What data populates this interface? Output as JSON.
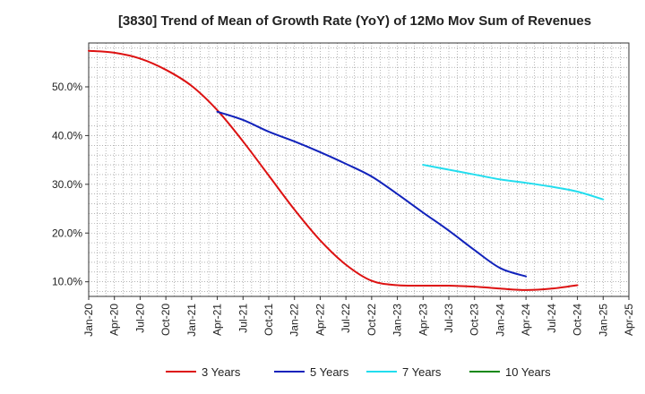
{
  "chart_data": {
    "type": "line",
    "title": "[3830]  Trend of Mean of Growth Rate (YoY) of 12Mo Mov Sum of Revenues",
    "xlabel": "",
    "ylabel": "",
    "y_unit": "%",
    "ylim": [
      7,
      59
    ],
    "yticks": [
      10,
      20,
      30,
      40,
      50
    ],
    "ytick_labels": [
      "10.0%",
      "20.0%",
      "30.0%",
      "40.0%",
      "50.0%"
    ],
    "xlim": [
      "Jan-20",
      "Apr-25"
    ],
    "xtick_labels": [
      "Jan-20",
      "Apr-20",
      "Jul-20",
      "Oct-20",
      "Jan-21",
      "Apr-21",
      "Jul-21",
      "Oct-21",
      "Jan-22",
      "Apr-22",
      "Jul-22",
      "Oct-22",
      "Jan-23",
      "Apr-23",
      "Jul-23",
      "Oct-23",
      "Jan-24",
      "Apr-24",
      "Jul-24",
      "Oct-24",
      "Jan-25",
      "Apr-25"
    ],
    "grid": true,
    "legend_position": "bottom",
    "series": [
      {
        "name": "3 Years",
        "color": "#dd1111",
        "points": [
          [
            "Jan-20",
            57.4
          ],
          [
            "Apr-20",
            57.0
          ],
          [
            "Jul-20",
            55.8
          ],
          [
            "Oct-20",
            53.5
          ],
          [
            "Jan-21",
            50.2
          ],
          [
            "Apr-21",
            45.2
          ],
          [
            "Jul-21",
            38.8
          ],
          [
            "Oct-21",
            31.8
          ],
          [
            "Jan-22",
            24.8
          ],
          [
            "Apr-22",
            18.5
          ],
          [
            "Jul-22",
            13.5
          ],
          [
            "Oct-22",
            10.2
          ],
          [
            "Jan-23",
            9.3
          ],
          [
            "Apr-23",
            9.2
          ],
          [
            "Jul-23",
            9.2
          ],
          [
            "Oct-23",
            9.0
          ],
          [
            "Jan-24",
            8.6
          ],
          [
            "Apr-24",
            8.3
          ],
          [
            "Jul-24",
            8.6
          ],
          [
            "Oct-24",
            9.3
          ]
        ]
      },
      {
        "name": "5 Years",
        "color": "#1122bb",
        "points": [
          [
            "Apr-21",
            44.9
          ],
          [
            "Jul-21",
            43.2
          ],
          [
            "Oct-21",
            40.8
          ],
          [
            "Jan-22",
            38.8
          ],
          [
            "Apr-22",
            36.6
          ],
          [
            "Jul-22",
            34.2
          ],
          [
            "Oct-22",
            31.6
          ],
          [
            "Jan-23",
            28.0
          ],
          [
            "Apr-23",
            24.2
          ],
          [
            "Jul-23",
            20.5
          ],
          [
            "Oct-23",
            16.5
          ],
          [
            "Jan-24",
            12.8
          ],
          [
            "Apr-24",
            11.1
          ]
        ]
      },
      {
        "name": "7 Years",
        "color": "#22ddee",
        "points": [
          [
            "Apr-23",
            34.0
          ],
          [
            "Jul-23",
            33.0
          ],
          [
            "Oct-23",
            32.0
          ],
          [
            "Jan-24",
            31.0
          ],
          [
            "Apr-24",
            30.3
          ],
          [
            "Jul-24",
            29.5
          ],
          [
            "Oct-24",
            28.5
          ],
          [
            "Jan-25",
            26.9
          ]
        ]
      },
      {
        "name": "10 Years",
        "color": "#118811",
        "points": []
      }
    ]
  }
}
